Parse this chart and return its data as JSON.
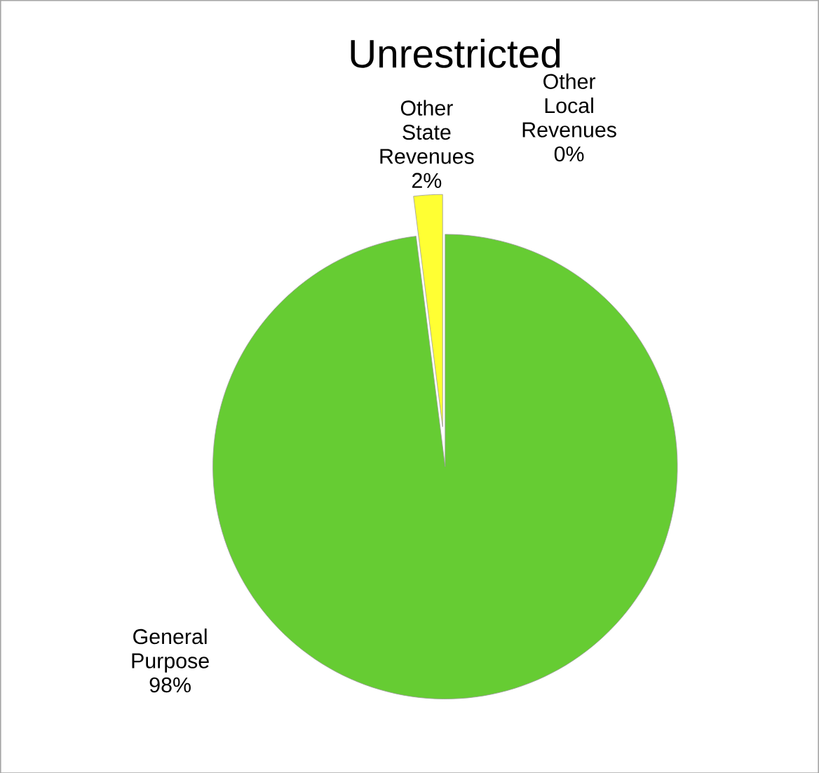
{
  "chart_data": {
    "type": "pie",
    "title": "Unrestricted",
    "categories": [
      "General Purpose",
      "Other State Revenues",
      "Other Local Revenues"
    ],
    "values": [
      98,
      2,
      0
    ],
    "colors": [
      "#66cc33",
      "#ffff33",
      "#6633cc"
    ],
    "value_labels": [
      "98%",
      "2%",
      "0%"
    ]
  }
}
